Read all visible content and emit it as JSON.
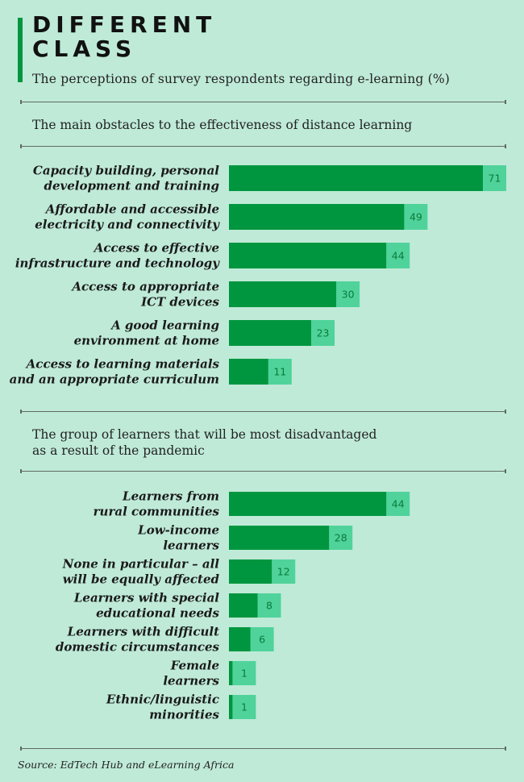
{
  "header": {
    "title": "DIFFERENT\nCLASS",
    "subtitle": "The perceptions of survey respondents regarding e-learning (%)"
  },
  "colors": {
    "background": "#bfead8",
    "bar_dark": "#00963f",
    "bar_light": "#4fd39a",
    "accent": "#00963f"
  },
  "chart_data": [
    {
      "type": "bar",
      "orientation": "horizontal",
      "title": "The main obstacles to the effectiveness of distance learning",
      "categories": [
        "Capacity building, personal\ndevelopment and training",
        "Affordable and accessible\nelectricity and connectivity",
        "Access to effective\ninfrastructure and technology",
        "Access to appropriate\nICT devices",
        "A good learning\nenvironment at home",
        "Access to learning materials\nand an appropriate curriculum"
      ],
      "values": [
        71,
        49,
        44,
        30,
        23,
        11
      ],
      "xlabel": "",
      "ylabel": "",
      "xlim": [
        0,
        71
      ]
    },
    {
      "type": "bar",
      "orientation": "horizontal",
      "title": "The group of learners that will be most disadvantaged\nas a result of the pandemic",
      "categories": [
        "Learners from\nrural communities",
        "Low-income\nlearners",
        "None in particular – all\nwill be equally affected",
        "Learners with special\neducational needs",
        "Learners with difficult\ndomestic circumstances",
        "Female\nlearners",
        "Ethnic/linguistic\nminorities"
      ],
      "values": [
        44,
        28,
        12,
        8,
        6,
        1,
        1
      ],
      "xlabel": "",
      "ylabel": "",
      "xlim": [
        0,
        71
      ]
    }
  ],
  "source": "Source: EdTech Hub and eLearning Africa"
}
